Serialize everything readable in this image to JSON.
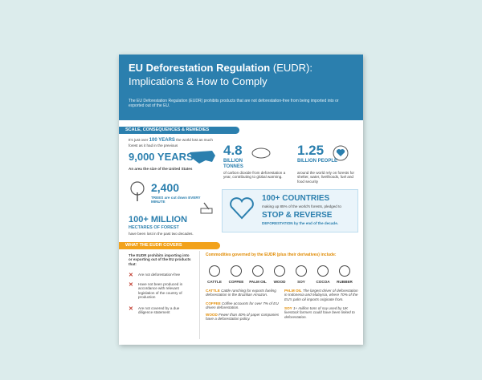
{
  "header": {
    "title_bold": "EU Deforestation Regulation",
    "title_light": "(EUDR):",
    "subtitle": "Implications & How to Comply",
    "description": "The EU Deforestation Regulation (EUDR) prohibits products that are not deforestation-free from being imported into or exported out of the EU."
  },
  "sections": [
    {
      "title": "SCALE, CONSEQUENCES & REMEDIES"
    },
    {
      "title": "WHAT THE EUDR COVERS"
    }
  ],
  "stats": {
    "years": {
      "intro": "It's just over",
      "highlight": "100 YEARS",
      "rest": "the world lost as much forest as it had in the previous",
      "big": "9,000 YEARS",
      "note": "An area the size of the United States"
    },
    "trees": {
      "big": "2,400",
      "text": "TREES are cut down",
      "highlight": "EVERY MINUTE"
    },
    "hectares": {
      "big": "100+ MILLION",
      "sub": "HECTARES OF FOREST",
      "text": "have been lost in the past two decades."
    },
    "carbon": {
      "big": "4.8",
      "sub": "BILLION TONNES",
      "text": "of carbon dioxide from deforestation a year, contributing to global warming."
    },
    "people": {
      "big": "1.25",
      "sub": "BILLION PEOPLE",
      "text": "around the world rely on forests for shelter, water, livelihoods, fuel and food security"
    },
    "countries": {
      "big": "100+ COUNTRIES",
      "text": "making up 85% of the world's forests, pledged to",
      "highlight": "STOP & REVERSE",
      "end": "DEFORESTATION by the end of the decade."
    }
  },
  "covers": {
    "intro": "The EUDR prohibits importing into or exporting out of the EU products that:",
    "items": [
      "Are not deforestation-free",
      "Have not been produced in accordance with relevant legislation of the country of production",
      "Are not covered by a due diligence statement"
    ],
    "commodities_title": "Commodities governed by the EUDR (plus their derivatives) include:",
    "commodities": [
      "CATTLE",
      "COFFEE",
      "PALM OIL",
      "WOOD",
      "SOY",
      "COCOA",
      "RUBBER"
    ],
    "notes": [
      {
        "name": "CATTLE",
        "text": "Cattle ranching for exports fueling deforestation in the Brazilian Amazon."
      },
      {
        "name": "COFFEE",
        "text": "Coffee accounts for over 7% of EU driven deforestation."
      },
      {
        "name": "WOOD",
        "text": "Fewer than 40% of paper companies have a deforestation policy."
      },
      {
        "name": "PALM OIL",
        "text": "The largest driver of deforestation in Indonesia and Malaysia, where 70% of the EU's palm oil imports originate from."
      },
      {
        "name": "SOY",
        "text": "1+ million tons of soy used by UK livestock farmers could have been linked to deforestation."
      }
    ]
  }
}
